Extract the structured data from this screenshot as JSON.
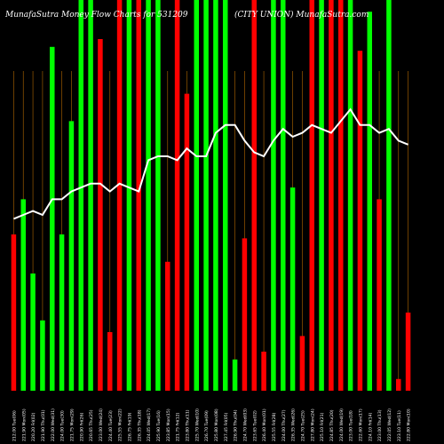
{
  "header": {
    "left": "MunafaSutra  Money Flow  Charts for 531209",
    "right": "(CITY UNION)  MunafaSutra.com"
  },
  "chart_data": {
    "type": "bar",
    "title": "MunafaSutra  Money Flow  Charts for 531209",
    "subtitle": "(CITY UNION)  MunafaSutra.com",
    "xlabel": "",
    "ylabel": "",
    "grid": true,
    "ylim": [
      0,
      100
    ],
    "categories": [
      "212.00 Tue(06)",
      "221.90 Mon(05)",
      "220.20 Fri(02)",
      "221.90 Thu(01)",
      "222.00 Wed(31)",
      "224.00 Tue(30)",
      "221.75 Mon(29)",
      "220.90 Fri(26)",
      "220.65 Thu(25)",
      "223.00 Wed(24)",
      "224.40 Tue(23)",
      "225.55 Mon(22)",
      "226.75 Fri(19)",
      "226.35 Thu(18)",
      "224.05 Wed(17)",
      "225.90 Tue(16)",
      "223.85 Mon(15)",
      "221.75 Fri(12)",
      "223.80 Thu(11)",
      "225.70 Wed(10)",
      "226.70 Tue(09)",
      "225.80 Mon(08)",
      "227.45 Fri(05)",
      "226.90 Thu(04)",
      "224.70 Wed(03)",
      "223.65 Tue(02)",
      "226.40 Mon(01)",
      "225.55 Fri(28)",
      "224.00 Thu(27)",
      "226.35 Wed(26)",
      "224.70 Tue(25)",
      "227.80 Mon(24)",
      "225.10 Fri(21)",
      "224.85 Thu(20)",
      "224.00 Wed(19)",
      "223.00 Tue(18)",
      "222.60 Mon(17)",
      "224.10 Fri(14)",
      "223.00 Thu(13)",
      "222.05 Wed(12)",
      "223.10 Tue(11)",
      "222.80 Mon(10)"
    ],
    "series": [
      {
        "values": [
          40,
          49,
          30,
          18,
          88,
          40,
          69,
          100,
          100,
          90,
          15,
          100,
          100,
          100,
          100,
          100,
          33,
          100,
          76,
          100,
          100,
          100,
          100,
          8,
          39,
          100,
          10,
          100,
          100,
          52,
          14,
          100,
          100,
          100,
          100,
          100,
          87,
          97,
          49,
          100,
          3,
          20
        ]
      }
    ],
    "bar_colors": [
      "red",
      "lime",
      "lime",
      "lime",
      "lime",
      "lime",
      "lime",
      "lime",
      "lime",
      "red",
      "red",
      "red",
      "lime",
      "red",
      "lime",
      "lime",
      "red",
      "red",
      "red",
      "lime",
      "lime",
      "lime",
      "lime",
      "lime",
      "red",
      "red",
      "red",
      "lime",
      "lime",
      "lime",
      "red",
      "red",
      "lime",
      "red",
      "red",
      "lime",
      "red",
      "lime",
      "red",
      "lime",
      "red",
      "red"
    ],
    "line": [
      44,
      45,
      46,
      45,
      49,
      49,
      51,
      52,
      53,
      53,
      51,
      53,
      52,
      51,
      59,
      60,
      60,
      59,
      62,
      60,
      60,
      66,
      68,
      68,
      64,
      61,
      60,
      64,
      67,
      65,
      66,
      68,
      67,
      66,
      69,
      72,
      68,
      68,
      66,
      67,
      64,
      63
    ]
  },
  "colors": {
    "background": "#000000",
    "up_bar": "#00ff00",
    "down_bar": "#ff0000",
    "grid": "#9a5a00",
    "line": "#ffffff",
    "text": "#ffffff"
  }
}
